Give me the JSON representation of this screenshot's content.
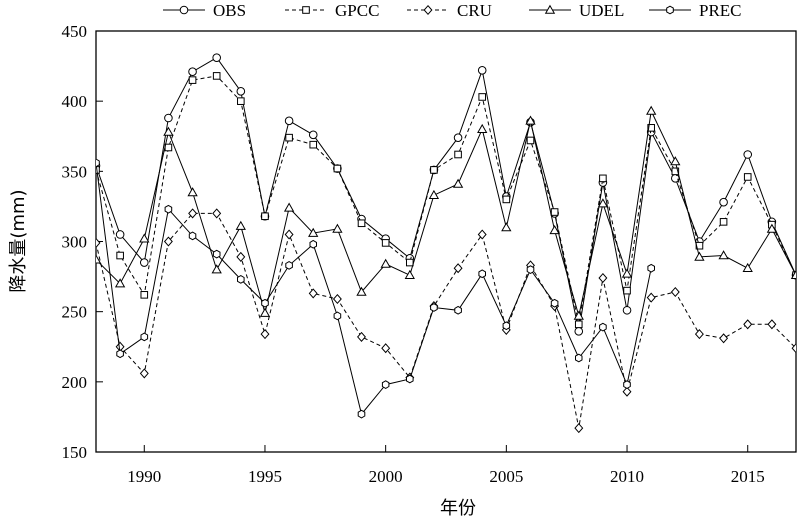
{
  "chart_data": {
    "type": "line",
    "xlabel": "年份",
    "ylabel": "降水量(mm)",
    "xlim": [
      1988,
      2017
    ],
    "ylim": [
      150,
      450
    ],
    "xticks": [
      1990,
      1995,
      2000,
      2005,
      2010,
      2015
    ],
    "yticks": [
      150,
      200,
      250,
      300,
      350,
      400,
      450
    ],
    "legend_position": "top",
    "x": [
      1988,
      1989,
      1990,
      1991,
      1992,
      1993,
      1994,
      1995,
      1996,
      1997,
      1998,
      1999,
      2000,
      2001,
      2002,
      2003,
      2004,
      2005,
      2006,
      2007,
      2008,
      2009,
      2010,
      2011,
      2012,
      2013,
      2014,
      2015,
      2016,
      2017
    ],
    "series": [
      {
        "name": "OBS",
        "marker": "circle",
        "dash": "solid",
        "values": [
          354,
          305,
          285,
          388,
          421,
          431,
          407,
          318,
          386,
          376,
          352,
          316,
          302,
          288,
          351,
          374,
          422,
          332,
          385,
          320,
          236,
          342,
          251,
          378,
          345,
          300,
          328,
          362,
          314,
          276
        ]
      },
      {
        "name": "GPCC",
        "marker": "square",
        "dash": "dashed",
        "values": [
          351,
          290,
          262,
          367,
          415,
          418,
          400,
          318,
          374,
          369,
          352,
          313,
          299,
          285,
          351,
          362,
          403,
          330,
          372,
          321,
          241,
          345,
          265,
          381,
          350,
          297,
          314,
          346,
          312,
          276
        ]
      },
      {
        "name": "CRU",
        "marker": "diamond",
        "dash": "dashed",
        "values": [
          299,
          225,
          206,
          300,
          320,
          320,
          289,
          234,
          305,
          263,
          259,
          232,
          224,
          203,
          254,
          281,
          305,
          237,
          283,
          254,
          167,
          274,
          193,
          260,
          264,
          234,
          231,
          241,
          241,
          224
        ]
      },
      {
        "name": "UDEL",
        "marker": "triangle",
        "dash": "solid",
        "values": [
          287,
          270,
          302,
          378,
          335,
          280,
          311,
          249,
          324,
          306,
          309,
          264,
          284,
          276,
          333,
          341,
          380,
          310,
          386,
          308,
          247,
          327,
          277,
          393,
          357,
          289,
          290,
          281,
          309,
          276
        ]
      },
      {
        "name": "PREC",
        "marker": "hexagon",
        "dash": "solid",
        "values": [
          356,
          220,
          232,
          323,
          304,
          291,
          273,
          256,
          283,
          298,
          247,
          177,
          198,
          202,
          253,
          251,
          277,
          240,
          280,
          256,
          217,
          239,
          198,
          281,
          null,
          null,
          null,
          null,
          null,
          null
        ]
      }
    ]
  }
}
